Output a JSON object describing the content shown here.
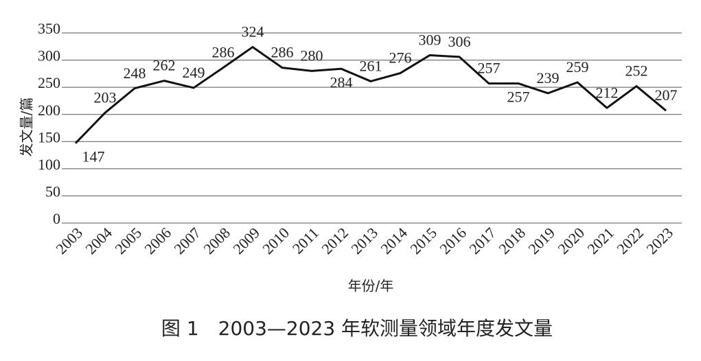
{
  "chart_data": {
    "type": "line",
    "title": "图 1　2003—2023 年软测量领域年度发文量",
    "x_label": "年份/年",
    "y_label": "发文量/篇",
    "categories": [
      "2003",
      "2004",
      "2005",
      "2006",
      "2007",
      "2008",
      "2009",
      "2010",
      "2011",
      "2012",
      "2013",
      "2014",
      "2015",
      "2016",
      "2017",
      "2018",
      "2019",
      "2020",
      "2021",
      "2022",
      "2023"
    ],
    "values": [
      147,
      203,
      248,
      262,
      249,
      286,
      324,
      286,
      280,
      284,
      261,
      276,
      309,
      306,
      257,
      257,
      239,
      259,
      212,
      252,
      207
    ],
    "color": "#111111",
    "ylim": [
      0,
      350
    ],
    "yticks": [
      0,
      50,
      100,
      150,
      200,
      250,
      300,
      350
    ],
    "grid": true
  }
}
